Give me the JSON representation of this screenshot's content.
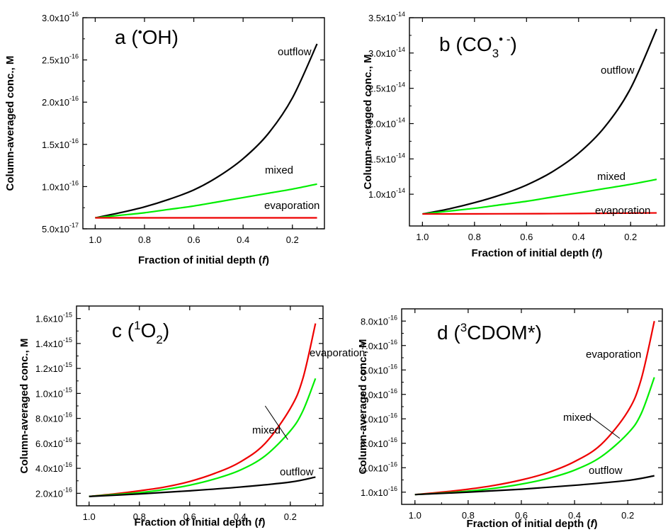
{
  "chart_data": [
    {
      "type": "line",
      "panel": "a",
      "title_prefix": "a (",
      "title_superscript": "•",
      "title_main": "OH",
      "title_subscript": "",
      "title_radical_superscript": "",
      "title_suffix": ")",
      "xlabel_prefix": "Fraction of initial depth (",
      "xlabel_var": "f",
      "xlabel_suffix": ")",
      "ylabel": "Column-averaged conc., M",
      "xlim": [
        1.05,
        0.07
      ],
      "ylim": [
        5e-17,
        3e-16
      ],
      "x_ticks": [
        1.0,
        0.8,
        0.6,
        0.4,
        0.2
      ],
      "x_tick_labels": [
        "1.0",
        "0.8",
        "0.6",
        "0.4",
        "0.2"
      ],
      "y_ticks": [
        5e-17,
        1e-16,
        1.5e-16,
        2e-16,
        2.5e-16,
        3e-16
      ],
      "y_tick_labels": [
        {
          "mantissa": "5.0x10",
          "exp": "-17"
        },
        {
          "mantissa": "1.0x10",
          "exp": "-16"
        },
        {
          "mantissa": "1.5x10",
          "exp": "-16"
        },
        {
          "mantissa": "2.0x10",
          "exp": "-16"
        },
        {
          "mantissa": "2.5x10",
          "exp": "-16"
        },
        {
          "mantissa": "3.0x10",
          "exp": "-16"
        }
      ],
      "series": [
        {
          "name": "outflow",
          "color": "#000000",
          "x": [
            1.0,
            0.9,
            0.8,
            0.7,
            0.6,
            0.5,
            0.4,
            0.3,
            0.2,
            0.1
          ],
          "y": [
            6.3e-17,
            6.9e-17,
            7.6e-17,
            8.5e-17,
            9.6e-17,
            1.12e-16,
            1.33e-16,
            1.62e-16,
            2.05e-16,
            2.69e-16
          ]
        },
        {
          "name": "mixed",
          "color": "#00ee00",
          "x": [
            1.0,
            0.9,
            0.8,
            0.7,
            0.6,
            0.5,
            0.4,
            0.3,
            0.2,
            0.1
          ],
          "y": [
            6.3e-17,
            6.6e-17,
            6.9e-17,
            7.3e-17,
            7.7e-17,
            8.2e-17,
            8.7e-17,
            9.2e-17,
            9.7e-17,
            1.03e-16
          ]
        },
        {
          "name": "evaporation",
          "color": "#ee0000",
          "x": [
            1.0,
            0.1
          ],
          "y": [
            6.3e-17,
            6.3e-17
          ]
        }
      ]
    },
    {
      "type": "line",
      "panel": "b",
      "title_prefix": "b (CO",
      "title_superscript": "",
      "title_main": "",
      "title_subscript": "3",
      "title_radical_superscript": "• -",
      "title_suffix": ")",
      "xlabel_prefix": "Fraction of initial depth (",
      "xlabel_var": "f",
      "xlabel_suffix": ")",
      "ylabel": "Column-averaged conc., M",
      "xlim": [
        1.05,
        0.07
      ],
      "ylim": [
        5.5e-15,
        3.5e-14
      ],
      "x_ticks": [
        1.0,
        0.8,
        0.6,
        0.4,
        0.2
      ],
      "x_tick_labels": [
        "1.0",
        "0.8",
        "0.6",
        "0.4",
        "0.2"
      ],
      "y_ticks": [
        1e-14,
        1.5e-14,
        2e-14,
        2.5e-14,
        3e-14,
        3.5e-14
      ],
      "y_tick_labels": [
        {
          "mantissa": "1.0x10",
          "exp": "-14"
        },
        {
          "mantissa": "1.5x10",
          "exp": "-14"
        },
        {
          "mantissa": "2.0x10",
          "exp": "-14"
        },
        {
          "mantissa": "2.5x10",
          "exp": "-14"
        },
        {
          "mantissa": "3.0x10",
          "exp": "-14"
        },
        {
          "mantissa": "3.5x10",
          "exp": "-14"
        }
      ],
      "series": [
        {
          "name": "outflow",
          "color": "#000000",
          "x": [
            1.0,
            0.9,
            0.8,
            0.7,
            0.6,
            0.5,
            0.4,
            0.3,
            0.2,
            0.1
          ],
          "y": [
            7.2e-15,
            7.9e-15,
            8.8e-15,
            9.9e-15,
            1.13e-14,
            1.32e-14,
            1.58e-14,
            1.95e-14,
            2.5e-14,
            3.34e-14
          ]
        },
        {
          "name": "mixed",
          "color": "#00ee00",
          "x": [
            1.0,
            0.9,
            0.8,
            0.7,
            0.6,
            0.5,
            0.4,
            0.3,
            0.2,
            0.1
          ],
          "y": [
            7.2e-15,
            7.6e-15,
            8e-15,
            8.5e-15,
            9e-15,
            9.6e-15,
            1.02e-14,
            1.08e-14,
            1.14e-14,
            1.21e-14
          ]
        },
        {
          "name": "evaporation",
          "color": "#ee0000",
          "x": [
            1.0,
            0.5,
            0.1
          ],
          "y": [
            7.2e-15,
            7.25e-15,
            7.35e-15
          ]
        }
      ]
    },
    {
      "type": "line",
      "panel": "c",
      "title_prefix": "c (",
      "title_superscript": "1",
      "title_main": "O",
      "title_subscript": "2",
      "title_radical_superscript": "",
      "title_suffix": ")",
      "xlabel_prefix": "Fraction of initial depth (",
      "xlabel_var": "f",
      "xlabel_suffix": ")",
      "ylabel": "Column-averaged conc., M",
      "xlim": [
        1.05,
        0.07
      ],
      "ylim": [
        1e-16,
        1.7e-15
      ],
      "x_ticks": [
        1.0,
        0.8,
        0.6,
        0.4,
        0.2
      ],
      "x_tick_labels": [
        "1.0",
        "0.8",
        "0.6",
        "0.4",
        "0.2"
      ],
      "y_ticks": [
        2e-16,
        4e-16,
        6e-16,
        8e-16,
        1e-15,
        1.2e-15,
        1.4e-15,
        1.6e-15
      ],
      "y_tick_labels": [
        {
          "mantissa": "2.0x10",
          "exp": "-16"
        },
        {
          "mantissa": "4.0x10",
          "exp": "-16"
        },
        {
          "mantissa": "6.0x10",
          "exp": "-16"
        },
        {
          "mantissa": "8.0x10",
          "exp": "-16"
        },
        {
          "mantissa": "1.0x10",
          "exp": "-15"
        },
        {
          "mantissa": "1.2x10",
          "exp": "-15"
        },
        {
          "mantissa": "1.4x10",
          "exp": "-15"
        },
        {
          "mantissa": "1.6x10",
          "exp": "-15"
        }
      ],
      "series": [
        {
          "name": "evaporation",
          "color": "#ee0000",
          "x": [
            1.0,
            0.9,
            0.8,
            0.7,
            0.6,
            0.5,
            0.4,
            0.3,
            0.2,
            0.15,
            0.1
          ],
          "y": [
            1.75e-16,
            1.95e-16,
            2.2e-16,
            2.5e-16,
            2.95e-16,
            3.6e-16,
            4.5e-16,
            6e-16,
            8.8e-16,
            1.12e-15,
            1.56e-15
          ]
        },
        {
          "name": "mixed",
          "color": "#00ee00",
          "x": [
            1.0,
            0.9,
            0.8,
            0.7,
            0.6,
            0.5,
            0.4,
            0.3,
            0.2,
            0.15,
            0.1
          ],
          "y": [
            1.75e-16,
            1.9e-16,
            2.05e-16,
            2.3e-16,
            2.65e-16,
            3.15e-16,
            3.85e-16,
            5e-16,
            7e-16,
            8.6e-16,
            1.12e-15
          ]
        },
        {
          "name": "outflow",
          "color": "#000000",
          "x": [
            1.0,
            0.8,
            0.6,
            0.4,
            0.2,
            0.1
          ],
          "y": [
            1.75e-16,
            1.95e-16,
            2.2e-16,
            2.5e-16,
            2.9e-16,
            3.3e-16
          ]
        }
      ],
      "annotations": [
        {
          "text": "mixed",
          "arrow_from_x": 0.3,
          "arrow_from_y": 9e-16,
          "arrow_to_x": 0.21,
          "arrow_to_y": 6.3e-16
        }
      ]
    },
    {
      "type": "line",
      "panel": "d",
      "title_prefix": "d (",
      "title_superscript": "3",
      "title_main": "CDOM*",
      "title_subscript": "",
      "title_radical_superscript": "",
      "title_suffix": ")",
      "xlabel_prefix": "Fraction of initial depth (",
      "xlabel_var": "f",
      "xlabel_suffix": ")",
      "ylabel": "Column-averaged conc., M",
      "xlim": [
        1.05,
        0.07
      ],
      "ylim": [
        5e-17,
        8.5e-16
      ],
      "x_ticks": [
        1.0,
        0.8,
        0.6,
        0.4,
        0.2
      ],
      "x_tick_labels": [
        "1.0",
        "0.8",
        "0.6",
        "0.4",
        "0.2"
      ],
      "y_ticks": [
        1e-16,
        2e-16,
        3e-16,
        4e-16,
        5e-16,
        6e-16,
        7e-16,
        8e-16
      ],
      "y_tick_labels": [
        {
          "mantissa": "1.0x10",
          "exp": "-16"
        },
        {
          "mantissa": "2.0x10",
          "exp": "-16"
        },
        {
          "mantissa": "3.0x10",
          "exp": "-16"
        },
        {
          "mantissa": "4.0x10",
          "exp": "-16"
        },
        {
          "mantissa": "5.0x10",
          "exp": "-16"
        },
        {
          "mantissa": "6.0x10",
          "exp": "-16"
        },
        {
          "mantissa": "7.0x10",
          "exp": "-16"
        },
        {
          "mantissa": "8.0x10",
          "exp": "-16"
        }
      ],
      "series": [
        {
          "name": "evaporation",
          "color": "#ee0000",
          "x": [
            1.0,
            0.9,
            0.8,
            0.7,
            0.6,
            0.5,
            0.4,
            0.3,
            0.2,
            0.15,
            0.1
          ],
          "y": [
            9e-17,
            1e-16,
            1.12e-16,
            1.28e-16,
            1.5e-16,
            1.8e-16,
            2.25e-16,
            2.95e-16,
            4.3e-16,
            5.6e-16,
            8e-16
          ]
        },
        {
          "name": "mixed",
          "color": "#00ee00",
          "x": [
            1.0,
            0.9,
            0.8,
            0.7,
            0.6,
            0.5,
            0.4,
            0.3,
            0.2,
            0.15,
            0.1
          ],
          "y": [
            9e-17,
            9.6e-17,
            1.04e-16,
            1.16e-16,
            1.33e-16,
            1.56e-16,
            1.9e-16,
            2.45e-16,
            3.4e-16,
            4.2e-16,
            5.7e-16
          ]
        },
        {
          "name": "outflow",
          "color": "#000000",
          "x": [
            1.0,
            0.8,
            0.6,
            0.4,
            0.2,
            0.1
          ],
          "y": [
            9e-17,
            1e-16,
            1.12e-16,
            1.28e-16,
            1.48e-16,
            1.67e-16
          ]
        }
      ],
      "annotations": [
        {
          "text": "mixed",
          "arrow_from_x": 0.34,
          "arrow_from_y": 4.1e-16,
          "arrow_to_x": 0.23,
          "arrow_to_y": 3.2e-16
        }
      ]
    }
  ]
}
